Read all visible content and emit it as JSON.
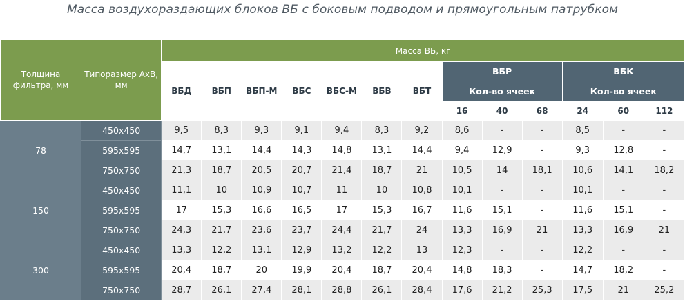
{
  "title": "Масса воздухораздающих блоков ВБ с боковым подводом и прямоугольным патрубком",
  "headers": {
    "filter": "Толщина фильтра, мм",
    "size": "Типоразмер AxB, мм",
    "mass": "Масса ВБ, кг",
    "types": [
      "ВБД",
      "ВБП",
      "ВБП-М",
      "ВБС",
      "ВБС-М",
      "ВБВ",
      "ВБТ"
    ],
    "vbr": "ВБР",
    "vbk": "ВБК",
    "cells": "Кол-во ячеек",
    "vbr_cells": [
      "16",
      "40",
      "68"
    ],
    "vbk_cells": [
      "24",
      "60",
      "112"
    ]
  },
  "groups": [
    {
      "thickness": "78",
      "rows": [
        {
          "size": "450x450",
          "values": [
            "9,5",
            "8,3",
            "9,3",
            "9,1",
            "9,4",
            "8,3",
            "9,2",
            "8,6",
            "-",
            "-",
            "8,5",
            "-",
            "-"
          ]
        },
        {
          "size": "595x595",
          "values": [
            "14,7",
            "13,1",
            "14,4",
            "14,3",
            "14,8",
            "13,1",
            "14,4",
            "9,4",
            "12,9",
            "-",
            "9,3",
            "12,8",
            "-"
          ]
        },
        {
          "size": "750x750",
          "values": [
            "21,3",
            "18,7",
            "20,5",
            "20,7",
            "21,4",
            "18,7",
            "21",
            "10,5",
            "14",
            "18,1",
            "10,6",
            "14,1",
            "18,2"
          ]
        }
      ]
    },
    {
      "thickness": "150",
      "rows": [
        {
          "size": "450x450",
          "values": [
            "11,1",
            "10",
            "10,9",
            "10,7",
            "11",
            "10",
            "10,8",
            "10,1",
            "-",
            "-",
            "10,1",
            "-",
            "-"
          ]
        },
        {
          "size": "595x595",
          "values": [
            "17",
            "15,3",
            "16,6",
            "16,5",
            "17",
            "15,3",
            "16,7",
            "11,6",
            "15,1",
            "-",
            "11,6",
            "15,1",
            "-"
          ]
        },
        {
          "size": "750x750",
          "values": [
            "24,3",
            "21,7",
            "23,6",
            "23,7",
            "24,4",
            "21,7",
            "24",
            "13,3",
            "16,9",
            "21",
            "13,3",
            "16,9",
            "21"
          ]
        }
      ]
    },
    {
      "thickness": "300",
      "rows": [
        {
          "size": "450x450",
          "values": [
            "13,3",
            "12,2",
            "13,1",
            "12,9",
            "13,2",
            "12,2",
            "13",
            "12,3",
            "-",
            "-",
            "12,2",
            "-",
            "-"
          ]
        },
        {
          "size": "595x595",
          "values": [
            "20,4",
            "18,7",
            "20",
            "19,9",
            "20,4",
            "18,7",
            "20,4",
            "14,8",
            "18,3",
            "-",
            "14,7",
            "18,2",
            "-"
          ]
        },
        {
          "size": "750x750",
          "values": [
            "28,7",
            "26,1",
            "27,4",
            "28,1",
            "28,8",
            "26,1",
            "28,4",
            "17,6",
            "21,2",
            "25,3",
            "17,5",
            "21",
            "25,2"
          ]
        }
      ]
    }
  ]
}
